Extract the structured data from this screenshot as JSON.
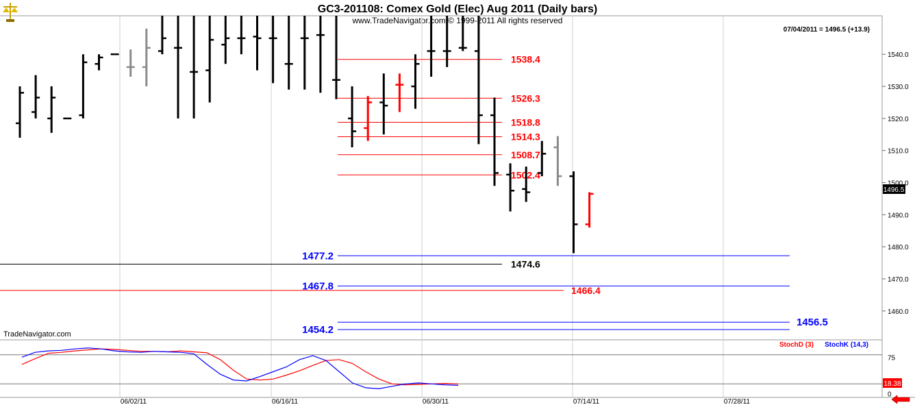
{
  "header": {
    "title": "GC3-201108:  Comex Gold (Elec) Aug 2011  (Daily bars)",
    "copyright": "www.TradeNavigator.com © 1999-2011 All rights reserved",
    "last_quote": "07/04/2011 = 1496.5 (+13.9)"
  },
  "footer": {
    "brand": "TradeNavigator.com"
  },
  "colors": {
    "bar_black": "#000000",
    "bar_gray": "#8a8a8a",
    "bar_red": "#ff0000",
    "level_red": "#ff0000",
    "level_blue": "#0000ff",
    "stoch_d": "#ff0000",
    "stoch_k": "#0000ff",
    "accent_arrow": "#ff0000"
  },
  "icons": {
    "logo": "scales-icon",
    "nav": "left-arrow-icon"
  },
  "chart_data": [
    {
      "type": "ohlc",
      "title": "GC3-201108:  Comex Gold (Elec) Aug 2011  (Daily bars)",
      "x_ticks": [
        "06/02/11",
        "06/16/11",
        "06/30/11",
        "07/14/11",
        "07/28/11"
      ],
      "y_ticks": [
        1460.0,
        1470.0,
        1480.0,
        1490.0,
        1500.0,
        1510.0,
        1520.0,
        1530.0,
        1540.0
      ],
      "ylim": [
        1451.0,
        1552.0
      ],
      "last_value": "1496.5",
      "bars": [
        {
          "o": 1518.5,
          "h": 1530,
          "l": 1514,
          "c": 1528,
          "color": "black"
        },
        {
          "o": 1522,
          "h": 1533.5,
          "l": 1520,
          "c": 1526.5,
          "color": "black"
        },
        {
          "o": 1520,
          "h": 1530,
          "l": 1515.5,
          "c": 1526.5,
          "color": "black"
        },
        {
          "o": 1520,
          "h": 1520,
          "l": 1520,
          "c": 1520,
          "color": "black"
        },
        {
          "o": 1521,
          "h": 1540,
          "l": 1520,
          "c": 1537.5,
          "color": "black"
        },
        {
          "o": 1537,
          "h": 1540,
          "l": 1535,
          "c": 1539,
          "color": "black"
        },
        {
          "o": 1540,
          "h": 1540,
          "l": 1540,
          "c": 1540,
          "color": "black"
        },
        {
          "o": 1536,
          "h": 1541.5,
          "l": 1533,
          "c": 1536,
          "color": "gray"
        },
        {
          "o": 1536,
          "h": 1548,
          "l": 1530,
          "c": 1542,
          "color": "gray"
        },
        {
          "o": 1541,
          "h": 1552,
          "l": 1540,
          "c": 1545,
          "color": "black"
        },
        {
          "o": 1542,
          "h": 1552,
          "l": 1520,
          "c": 1542,
          "color": "black"
        },
        {
          "o": 1534.5,
          "h": 1552,
          "l": 1520,
          "c": 1534.5,
          "color": "black"
        },
        {
          "o": 1535,
          "h": 1552,
          "l": 1525,
          "c": 1544.5,
          "color": "black"
        },
        {
          "o": 1543,
          "h": 1552,
          "l": 1537,
          "c": 1545,
          "color": "black"
        },
        {
          "o": 1545,
          "h": 1552,
          "l": 1540,
          "c": 1545,
          "color": "black"
        },
        {
          "o": 1545.5,
          "h": 1552,
          "l": 1535,
          "c": 1545,
          "color": "black"
        },
        {
          "o": 1545,
          "h": 1552,
          "l": 1531,
          "c": 1545,
          "color": "black"
        },
        {
          "o": 1537,
          "h": 1552,
          "l": 1529,
          "c": 1537,
          "color": "black"
        },
        {
          "o": 1545,
          "h": 1552,
          "l": 1529,
          "c": 1545,
          "color": "black"
        },
        {
          "o": 1546,
          "h": 1552,
          "l": 1528,
          "c": 1546,
          "color": "black"
        },
        {
          "o": 1532,
          "h": 1552,
          "l": 1526,
          "c": 1532,
          "color": "black"
        },
        {
          "o": 1520,
          "h": 1530,
          "l": 1511,
          "c": 1516,
          "color": "black"
        },
        {
          "o": 1517,
          "h": 1527,
          "l": 1513,
          "c": 1525,
          "color": "red"
        },
        {
          "o": 1525,
          "h": 1534,
          "l": 1515,
          "c": 1524,
          "color": "black"
        },
        {
          "o": 1530.5,
          "h": 1534,
          "l": 1522,
          "c": 1530.5,
          "color": "red"
        },
        {
          "o": 1530,
          "h": 1540,
          "l": 1523,
          "c": 1537,
          "color": "black"
        },
        {
          "o": 1541,
          "h": 1552,
          "l": 1533,
          "c": 1541,
          "color": "black"
        },
        {
          "o": 1541,
          "h": 1552,
          "l": 1536,
          "c": 1541,
          "color": "black"
        },
        {
          "o": 1542,
          "h": 1552,
          "l": 1541,
          "c": 1542,
          "color": "black"
        },
        {
          "o": 1541,
          "h": 1552,
          "l": 1512,
          "c": 1521,
          "color": "black"
        },
        {
          "o": 1521,
          "h": 1526.5,
          "l": 1499,
          "c": 1503,
          "color": "black"
        },
        {
          "o": 1502.5,
          "h": 1506,
          "l": 1491,
          "c": 1497.5,
          "color": "black"
        },
        {
          "o": 1498,
          "h": 1505,
          "l": 1494,
          "c": 1497,
          "color": "black"
        },
        {
          "o": 1503,
          "h": 1513,
          "l": 1502,
          "c": 1509,
          "color": "black"
        },
        {
          "o": 1511,
          "h": 1514.5,
          "l": 1499,
          "c": 1502,
          "color": "gray"
        },
        {
          "o": 1502,
          "h": 1503.5,
          "l": 1478,
          "c": 1487,
          "color": "black"
        },
        {
          "o": 1487,
          "h": 1497,
          "l": 1486,
          "c": 1496.5,
          "color": "red"
        }
      ],
      "levels": [
        {
          "label": "1538.4",
          "value": 1538.4,
          "color": "red"
        },
        {
          "label": "1526.3",
          "value": 1526.3,
          "color": "red"
        },
        {
          "label": "1518.8",
          "value": 1518.8,
          "color": "red"
        },
        {
          "label": "1514.3",
          "value": 1514.3,
          "color": "red"
        },
        {
          "label": "1508.7",
          "value": 1508.7,
          "color": "red"
        },
        {
          "label": "1502.4",
          "value": 1502.4,
          "color": "red"
        },
        {
          "label": "1477.2",
          "value": 1477.2,
          "color": "blue"
        },
        {
          "label": "1474.6",
          "value": 1474.6,
          "color": "black"
        },
        {
          "label": "1467.8",
          "value": 1467.8,
          "color": "blue"
        },
        {
          "label": "1466.4",
          "value": 1466.4,
          "color": "red"
        },
        {
          "label": "1456.5",
          "value": 1456.5,
          "color": "blue"
        },
        {
          "label": "1454.2",
          "value": 1454.2,
          "color": "blue"
        }
      ]
    },
    {
      "type": "line",
      "legend": [
        "StochD (3)",
        "StochK (14,3)"
      ],
      "y_ticks": [
        75,
        0
      ],
      "ref_levels": [
        80,
        20
      ],
      "ylim": [
        -5,
        105
      ],
      "last_value": "18.38",
      "series": [
        {
          "name": "StochD (3)",
          "color": "red",
          "values": [
            60,
            72,
            83,
            85,
            88,
            90,
            92,
            91,
            89,
            87,
            87,
            86,
            88,
            86,
            84,
            70,
            48,
            30,
            28,
            30,
            38,
            47,
            58,
            68,
            70,
            62,
            45,
            30,
            20,
            18,
            19,
            20,
            21,
            20
          ]
        },
        {
          "name": "StochK (14,3)",
          "color": "blue",
          "values": [
            75,
            85,
            88,
            89,
            92,
            94,
            92,
            88,
            86,
            85,
            87,
            86,
            85,
            82,
            60,
            40,
            28,
            26,
            35,
            45,
            55,
            70,
            78,
            68,
            45,
            22,
            12,
            10,
            15,
            20,
            22,
            20,
            18,
            17
          ]
        }
      ]
    }
  ]
}
